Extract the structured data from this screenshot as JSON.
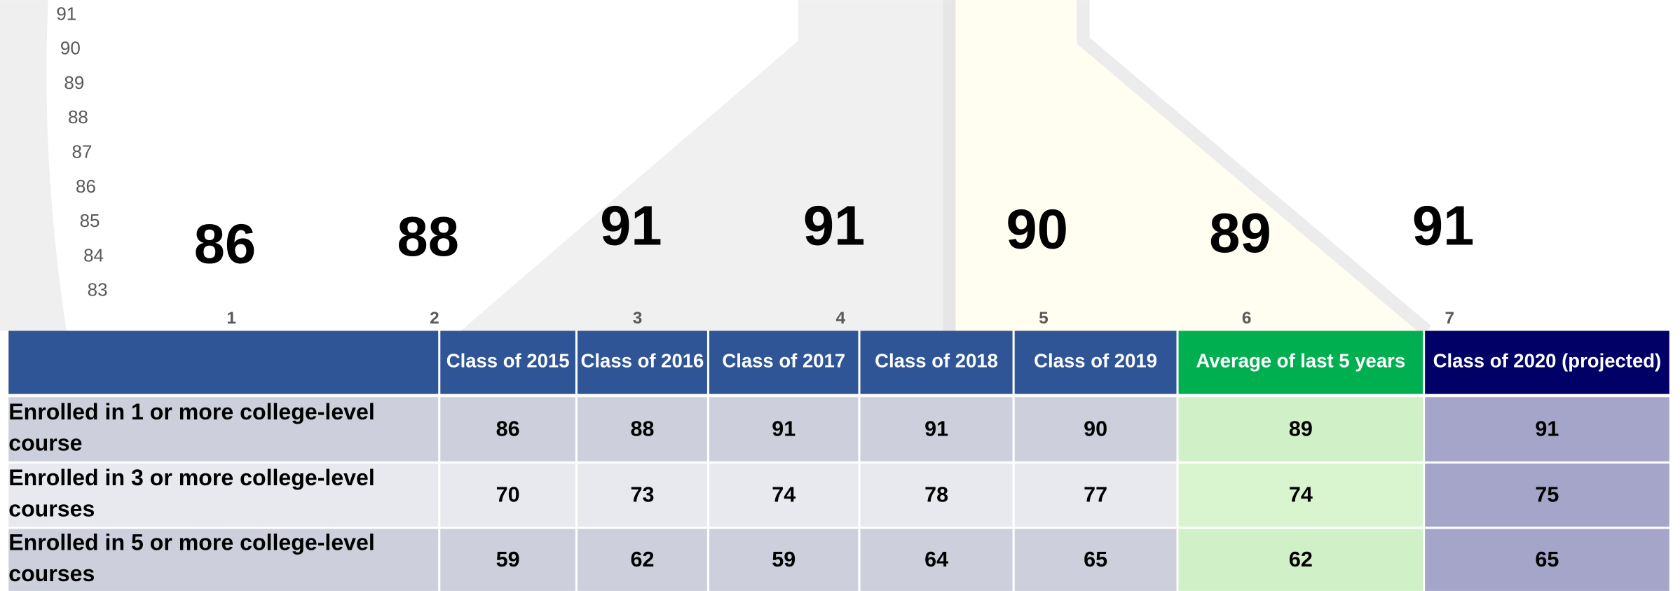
{
  "chart_data": {
    "type": "bar",
    "categories": [
      "1",
      "2",
      "3",
      "4",
      "5",
      "6",
      "7"
    ],
    "values": [
      86,
      88,
      91,
      91,
      90,
      89,
      91
    ],
    "ylim": [
      83,
      91
    ],
    "yticks": [
      83,
      84,
      85,
      86,
      87,
      88,
      89,
      90,
      91
    ]
  },
  "table": {
    "columns": [
      "Class of 2015",
      "Class of 2016",
      "Class of 2017",
      "Class of 2018",
      "Class of 2019",
      "Average of last 5 years",
      "Class of 2020 (projected)"
    ],
    "rows": [
      [
        "Enrolled in 1 or more college-level course",
        86,
        88,
        91,
        91,
        90,
        89,
        91
      ],
      [
        "Enrolled in 3 or more college-level courses",
        70,
        73,
        74,
        78,
        77,
        74,
        75
      ],
      [
        "Enrolled in 5 or more college-level courses",
        59,
        62,
        59,
        64,
        65,
        62,
        65
      ]
    ]
  }
}
